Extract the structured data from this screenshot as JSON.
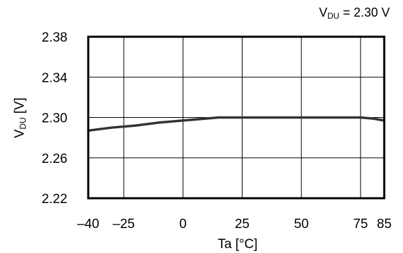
{
  "chart_data": {
    "type": "line",
    "condition_label": {
      "prefix": "V",
      "sub": "DU",
      "suffix": " = 2.30 V"
    },
    "xlabel": "Ta [°C]",
    "ylabel": {
      "prefix": "V",
      "sub": "DU",
      "suffix": " [V]"
    },
    "xlim": [
      -40,
      85
    ],
    "ylim": [
      2.22,
      2.38
    ],
    "x_ticks": [
      -40,
      -25,
      0,
      25,
      50,
      75,
      85
    ],
    "x_tick_labels": [
      "–40",
      "–25",
      "0",
      "25",
      "50",
      "75",
      "85"
    ],
    "y_ticks": [
      2.22,
      2.26,
      2.3,
      2.34,
      2.38
    ],
    "y_tick_labels": [
      "2.22",
      "2.26",
      "2.30",
      "2.34",
      "2.38"
    ],
    "grid": true,
    "series": [
      {
        "color": "#333333",
        "x": [
          -40,
          -30,
          -20,
          -10,
          0,
          10,
          15,
          25,
          35,
          50,
          65,
          75,
          80,
          85
        ],
        "y": [
          2.287,
          2.29,
          2.292,
          2.295,
          2.297,
          2.299,
          2.3,
          2.3,
          2.3,
          2.3,
          2.3,
          2.3,
          2.299,
          2.297
        ]
      }
    ]
  }
}
